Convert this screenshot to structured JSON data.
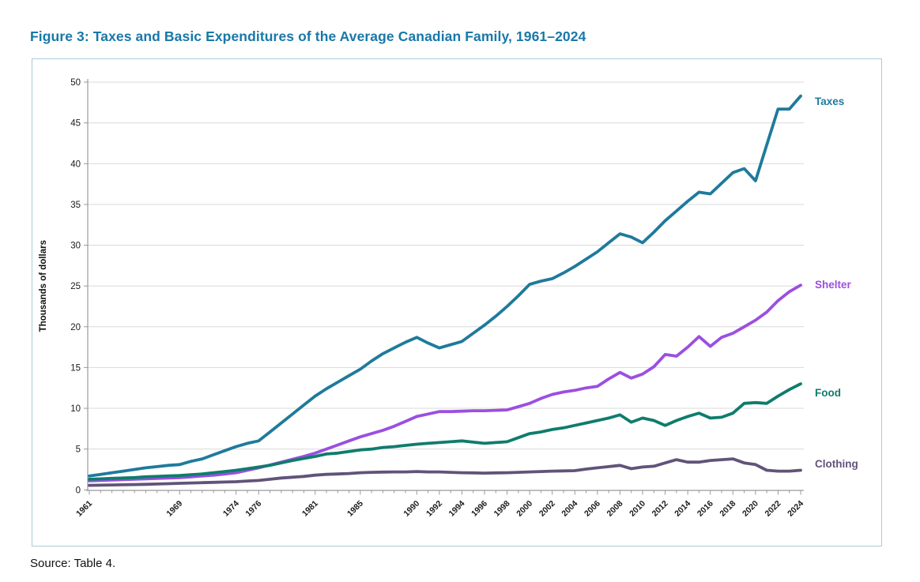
{
  "figure": {
    "title": "Figure 3: Taxes and Basic Expenditures of the Average Canadian Family, 1961–2024",
    "source": "Source: Table 4."
  },
  "colors": {
    "title_text": "#1878a8",
    "panel_border": "#a9cbd9",
    "gridline": "#d9d9d9",
    "axis": "#9a9a9a",
    "tick_text": "#1a1a1a"
  },
  "chart_data": {
    "type": "line",
    "title": "Figure 3: Taxes and Basic Expenditures of the Average Canadian Family, 1961–2024",
    "xlabel": "",
    "ylabel": "Thousands of dollars",
    "ylim": [
      0,
      50
    ],
    "y_ticks": [
      0,
      5,
      10,
      15,
      20,
      25,
      30,
      35,
      40,
      45,
      50
    ],
    "grid": "horizontal",
    "legend_position": "right-of-line-ends",
    "x": [
      1961,
      1962,
      1963,
      1964,
      1965,
      1966,
      1967,
      1968,
      1969,
      1970,
      1971,
      1972,
      1973,
      1974,
      1975,
      1976,
      1977,
      1978,
      1979,
      1980,
      1981,
      1982,
      1983,
      1984,
      1985,
      1986,
      1987,
      1988,
      1989,
      1990,
      1991,
      1992,
      1993,
      1994,
      1995,
      1996,
      1997,
      1998,
      1999,
      2000,
      2001,
      2002,
      2003,
      2004,
      2005,
      2006,
      2007,
      2008,
      2009,
      2010,
      2011,
      2012,
      2013,
      2014,
      2015,
      2016,
      2017,
      2018,
      2019,
      2020,
      2021,
      2022,
      2023,
      2024
    ],
    "x_tick_labels": [
      1961,
      1969,
      1974,
      1976,
      1981,
      1985,
      1990,
      1992,
      1994,
      1996,
      1998,
      2000,
      2002,
      2004,
      2006,
      2008,
      2010,
      2012,
      2014,
      2016,
      2018,
      2020,
      2022,
      2024
    ],
    "series": [
      {
        "name": "Taxes",
        "color": "#1f7a9c",
        "values": [
          1.7,
          1.9,
          2.1,
          2.3,
          2.5,
          2.7,
          2.85,
          3.0,
          3.1,
          3.5,
          3.8,
          4.3,
          4.8,
          5.3,
          5.7,
          6.0,
          7.1,
          8.2,
          9.3,
          10.4,
          11.5,
          12.4,
          13.2,
          14.0,
          14.8,
          15.8,
          16.7,
          17.4,
          18.1,
          18.7,
          18.0,
          17.4,
          17.8,
          18.2,
          19.2,
          20.2,
          21.3,
          22.5,
          23.8,
          25.2,
          25.6,
          25.9,
          26.6,
          27.4,
          28.3,
          29.2,
          30.3,
          31.4,
          31.0,
          30.3,
          31.6,
          33.0,
          34.2,
          35.4,
          36.5,
          36.3,
          37.6,
          38.9,
          39.4,
          37.9,
          42.3,
          46.7,
          46.7,
          48.3
        ]
      },
      {
        "name": "Shelter",
        "color": "#9b4fe0",
        "values": [
          1.1,
          1.15,
          1.2,
          1.25,
          1.3,
          1.35,
          1.4,
          1.45,
          1.5,
          1.6,
          1.7,
          1.8,
          1.95,
          2.1,
          2.4,
          2.7,
          3.05,
          3.4,
          3.75,
          4.1,
          4.5,
          5.0,
          5.5,
          6.0,
          6.5,
          6.9,
          7.3,
          7.8,
          8.4,
          9.0,
          9.3,
          9.6,
          9.6,
          9.65,
          9.7,
          9.7,
          9.75,
          9.8,
          10.2,
          10.6,
          11.2,
          11.7,
          12.0,
          12.2,
          12.5,
          12.7,
          13.6,
          14.4,
          13.7,
          14.2,
          15.1,
          16.6,
          16.4,
          17.5,
          18.8,
          17.6,
          18.7,
          19.2,
          20.0,
          20.8,
          21.8,
          23.2,
          24.3,
          25.1
        ]
      },
      {
        "name": "Food",
        "color": "#0f7c6c",
        "values": [
          1.3,
          1.35,
          1.4,
          1.45,
          1.5,
          1.6,
          1.65,
          1.7,
          1.75,
          1.85,
          1.95,
          2.1,
          2.25,
          2.4,
          2.6,
          2.8,
          3.0,
          3.3,
          3.6,
          3.85,
          4.1,
          4.4,
          4.5,
          4.7,
          4.9,
          5.0,
          5.2,
          5.3,
          5.45,
          5.6,
          5.7,
          5.8,
          5.9,
          6.0,
          5.85,
          5.7,
          5.8,
          5.9,
          6.4,
          6.9,
          7.1,
          7.4,
          7.6,
          7.9,
          8.2,
          8.5,
          8.8,
          9.2,
          8.3,
          8.8,
          8.5,
          7.9,
          8.5,
          9.0,
          9.4,
          8.8,
          8.9,
          9.4,
          10.6,
          10.7,
          10.6,
          11.5,
          12.3,
          13.0
        ]
      },
      {
        "name": "Clothing",
        "color": "#615379",
        "values": [
          0.55,
          0.57,
          0.6,
          0.62,
          0.65,
          0.68,
          0.72,
          0.76,
          0.8,
          0.84,
          0.88,
          0.92,
          0.96,
          1.0,
          1.08,
          1.15,
          1.3,
          1.45,
          1.55,
          1.65,
          1.8,
          1.9,
          1.95,
          2.0,
          2.1,
          2.15,
          2.18,
          2.2,
          2.2,
          2.25,
          2.2,
          2.2,
          2.15,
          2.1,
          2.08,
          2.05,
          2.08,
          2.1,
          2.15,
          2.2,
          2.25,
          2.3,
          2.32,
          2.35,
          2.55,
          2.7,
          2.85,
          3.0,
          2.6,
          2.8,
          2.9,
          3.3,
          3.7,
          3.4,
          3.4,
          3.6,
          3.7,
          3.8,
          3.3,
          3.1,
          2.4,
          2.3,
          2.3,
          2.4
        ]
      }
    ]
  }
}
